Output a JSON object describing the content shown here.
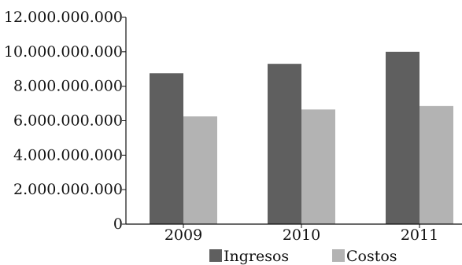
{
  "chart_data": {
    "type": "bar",
    "title": "",
    "xlabel": "",
    "ylabel": "",
    "categories": [
      "2009",
      "2010",
      "2011"
    ],
    "series": [
      {
        "name": "Ingresos",
        "color": "#5f5f5f",
        "values": [
          8750000000,
          9300000000,
          10000000000
        ]
      },
      {
        "name": "Costos",
        "color": "#b3b3b3",
        "values": [
          6250000000,
          6650000000,
          6850000000
        ]
      }
    ],
    "ylim": [
      0,
      12000000000
    ],
    "y_ticks": [
      {
        "value": 0,
        "label": "0"
      },
      {
        "value": 2000000000,
        "label": "2.000.000.000"
      },
      {
        "value": 4000000000,
        "label": "4.000.000.000"
      },
      {
        "value": 6000000000,
        "label": "6.000.000.000"
      },
      {
        "value": 8000000000,
        "label": "8.000.000.000"
      },
      {
        "value": 10000000000,
        "label": "10.000.000.000"
      },
      {
        "value": 12000000000,
        "label": "12.000.000.000"
      }
    ],
    "grid": false,
    "legend_position": "bottom-right"
  }
}
